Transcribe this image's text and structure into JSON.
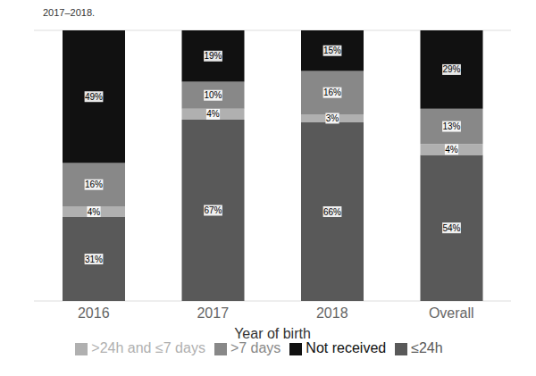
{
  "chart_data": {
    "type": "bar",
    "stacked": true,
    "annotations": [
      "2017–2018."
    ],
    "xlabel": "Year of birth",
    "categories": [
      "2016",
      "2017",
      "2018",
      "Overall"
    ],
    "series": [
      {
        "name": "≤24h",
        "color": "#595959",
        "values": [
          31,
          67,
          66,
          54
        ],
        "value_labels": [
          "31%",
          "67%",
          "66%",
          "54%"
        ]
      },
      {
        "name": ">24h and ≤7 days",
        "color": "#b0b0b0",
        "values": [
          4,
          4,
          3,
          4
        ],
        "value_labels": [
          "4%",
          "4%",
          "3%",
          "4%"
        ]
      },
      {
        "name": ">7 days",
        "color": "#888888",
        "values": [
          16,
          10,
          16,
          13
        ],
        "value_labels": [
          "16%",
          "10%",
          "16%",
          "13%"
        ]
      },
      {
        "name": "Not received",
        "color": "#111111",
        "values": [
          49,
          19,
          15,
          29
        ],
        "value_labels": [
          "49%",
          "19%",
          "15%",
          "29%"
        ]
      }
    ],
    "ylim": [
      0,
      100
    ],
    "yticks": [
      0,
      20,
      40,
      60,
      80,
      100
    ],
    "grid": true,
    "tick_labels": "x",
    "data_labels": true,
    "legend": "bottom"
  }
}
